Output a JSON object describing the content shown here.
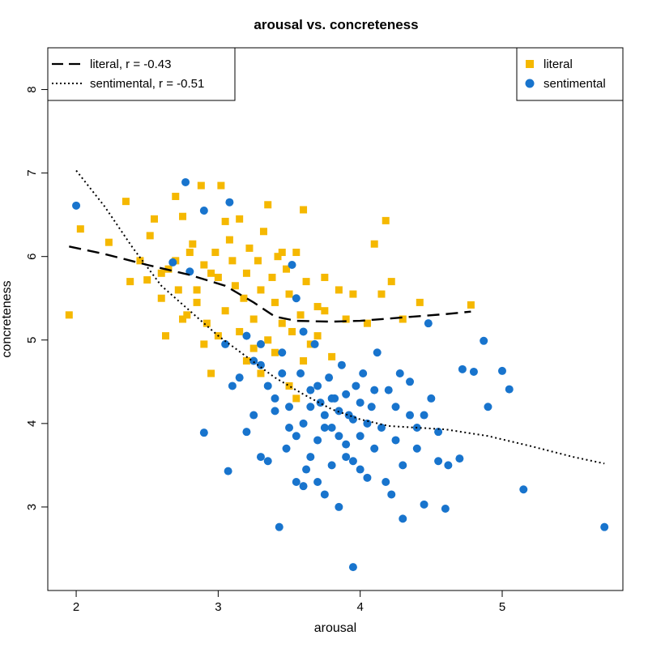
{
  "chart_data": {
    "type": "scatter",
    "title": "arousal vs. concreteness",
    "xlabel": "arousal",
    "ylabel": "concreteness",
    "xlim": [
      1.8,
      5.85
    ],
    "ylim": [
      2.0,
      8.5
    ],
    "xticks": [
      2,
      3,
      4,
      5
    ],
    "yticks": [
      3,
      4,
      5,
      6,
      7,
      8
    ],
    "grid": false,
    "series": [
      {
        "name": "literal",
        "marker": "square",
        "color": "#F5B800",
        "points": [
          [
            1.95,
            5.3
          ],
          [
            2.03,
            6.33
          ],
          [
            2.23,
            6.17
          ],
          [
            2.35,
            6.66
          ],
          [
            2.38,
            5.7
          ],
          [
            2.45,
            5.95
          ],
          [
            2.5,
            5.72
          ],
          [
            2.52,
            6.25
          ],
          [
            2.55,
            6.45
          ],
          [
            2.6,
            5.5
          ],
          [
            2.63,
            5.05
          ],
          [
            2.65,
            5.85
          ],
          [
            2.7,
            6.72
          ],
          [
            2.72,
            5.6
          ],
          [
            2.75,
            6.48
          ],
          [
            2.78,
            5.3
          ],
          [
            2.8,
            6.05
          ],
          [
            2.82,
            6.15
          ],
          [
            2.85,
            5.45
          ],
          [
            2.88,
            6.85
          ],
          [
            2.9,
            5.9
          ],
          [
            2.92,
            5.2
          ],
          [
            2.95,
            4.6
          ],
          [
            2.98,
            6.05
          ],
          [
            3.0,
            5.75
          ],
          [
            3.02,
            6.85
          ],
          [
            3.05,
            5.35
          ],
          [
            3.08,
            6.2
          ],
          [
            3.1,
            5.95
          ],
          [
            3.12,
            5.65
          ],
          [
            3.15,
            6.45
          ],
          [
            3.18,
            5.5
          ],
          [
            3.2,
            5.8
          ],
          [
            3.22,
            6.1
          ],
          [
            3.25,
            5.25
          ],
          [
            3.28,
            5.95
          ],
          [
            3.3,
            5.6
          ],
          [
            3.32,
            6.3
          ],
          [
            3.35,
            5.0
          ],
          [
            3.38,
            5.75
          ],
          [
            3.4,
            5.45
          ],
          [
            3.42,
            6.0
          ],
          [
            3.45,
            5.2
          ],
          [
            3.48,
            5.85
          ],
          [
            3.5,
            5.55
          ],
          [
            3.52,
            5.1
          ],
          [
            3.55,
            6.05
          ],
          [
            3.58,
            5.3
          ],
          [
            3.6,
            6.56
          ],
          [
            3.62,
            5.7
          ],
          [
            3.65,
            4.95
          ],
          [
            3.7,
            5.4
          ],
          [
            3.75,
            5.75
          ],
          [
            3.8,
            4.8
          ],
          [
            3.85,
            5.6
          ],
          [
            3.9,
            5.25
          ],
          [
            3.95,
            5.55
          ],
          [
            4.05,
            5.2
          ],
          [
            4.1,
            6.15
          ],
          [
            4.15,
            5.55
          ],
          [
            4.18,
            6.43
          ],
          [
            4.22,
            5.7
          ],
          [
            4.3,
            5.25
          ],
          [
            4.42,
            5.45
          ],
          [
            4.78,
            5.42
          ],
          [
            2.9,
            4.95
          ],
          [
            3.0,
            5.05
          ],
          [
            3.2,
            4.75
          ],
          [
            3.3,
            4.6
          ],
          [
            3.4,
            4.85
          ],
          [
            3.5,
            4.45
          ],
          [
            2.75,
            5.25
          ],
          [
            2.85,
            5.6
          ],
          [
            3.05,
            6.42
          ],
          [
            3.35,
            6.62
          ],
          [
            3.45,
            6.05
          ],
          [
            2.6,
            5.8
          ],
          [
            2.95,
            5.8
          ],
          [
            3.15,
            5.1
          ],
          [
            3.25,
            4.9
          ],
          [
            3.55,
            4.3
          ],
          [
            3.6,
            4.75
          ],
          [
            3.7,
            5.05
          ],
          [
            3.75,
            5.35
          ],
          [
            2.7,
            5.95
          ]
        ]
      },
      {
        "name": "sentimental",
        "marker": "circle",
        "color": "#1874CD",
        "points": [
          [
            2.0,
            6.61
          ],
          [
            2.77,
            6.89
          ],
          [
            2.9,
            6.55
          ],
          [
            3.08,
            6.65
          ],
          [
            2.68,
            5.93
          ],
          [
            2.8,
            5.82
          ],
          [
            2.9,
            3.89
          ],
          [
            3.07,
            3.43
          ],
          [
            3.1,
            4.45
          ],
          [
            3.2,
            5.05
          ],
          [
            3.25,
            4.1
          ],
          [
            3.3,
            4.7
          ],
          [
            3.35,
            3.55
          ],
          [
            3.4,
            4.3
          ],
          [
            3.43,
            2.76
          ],
          [
            3.45,
            4.85
          ],
          [
            3.48,
            3.7
          ],
          [
            3.5,
            4.2
          ],
          [
            3.52,
            5.9
          ],
          [
            3.55,
            3.3
          ],
          [
            3.58,
            4.6
          ],
          [
            3.6,
            4.0
          ],
          [
            3.62,
            3.45
          ],
          [
            3.65,
            4.4
          ],
          [
            3.68,
            4.95
          ],
          [
            3.7,
            3.8
          ],
          [
            3.72,
            4.25
          ],
          [
            3.75,
            3.15
          ],
          [
            3.78,
            4.55
          ],
          [
            3.8,
            3.95
          ],
          [
            3.82,
            4.3
          ],
          [
            3.85,
            3.0
          ],
          [
            3.87,
            4.7
          ],
          [
            3.9,
            3.6
          ],
          [
            3.92,
            4.1
          ],
          [
            3.95,
            2.28
          ],
          [
            3.97,
            4.45
          ],
          [
            4.0,
            3.85
          ],
          [
            4.02,
            4.6
          ],
          [
            4.05,
            3.35
          ],
          [
            4.08,
            4.2
          ],
          [
            4.1,
            3.7
          ],
          [
            4.12,
            4.85
          ],
          [
            4.15,
            3.95
          ],
          [
            4.18,
            3.3
          ],
          [
            4.2,
            4.4
          ],
          [
            4.22,
            3.15
          ],
          [
            4.25,
            3.8
          ],
          [
            4.28,
            4.6
          ],
          [
            4.3,
            3.5
          ],
          [
            4.35,
            4.1
          ],
          [
            4.4,
            3.7
          ],
          [
            4.45,
            3.03
          ],
          [
            4.5,
            4.3
          ],
          [
            4.55,
            3.9
          ],
          [
            4.6,
            2.98
          ],
          [
            4.62,
            3.5
          ],
          [
            4.7,
            3.58
          ],
          [
            4.72,
            4.65
          ],
          [
            4.8,
            4.62
          ],
          [
            4.9,
            4.2
          ],
          [
            4.87,
            4.99
          ],
          [
            5.0,
            4.63
          ],
          [
            5.05,
            4.41
          ],
          [
            5.15,
            3.21
          ],
          [
            5.72,
            2.76
          ],
          [
            4.48,
            5.2
          ],
          [
            4.3,
            2.86
          ],
          [
            3.55,
            5.5
          ],
          [
            3.6,
            5.1
          ],
          [
            3.65,
            4.2
          ],
          [
            3.7,
            4.45
          ],
          [
            3.75,
            4.1
          ],
          [
            3.8,
            4.3
          ],
          [
            3.85,
            4.15
          ],
          [
            3.9,
            4.35
          ],
          [
            3.95,
            4.05
          ],
          [
            4.0,
            4.25
          ],
          [
            4.05,
            4.0
          ],
          [
            4.1,
            4.4
          ],
          [
            3.3,
            4.95
          ],
          [
            3.35,
            4.45
          ],
          [
            3.4,
            4.15
          ],
          [
            3.45,
            4.6
          ],
          [
            3.5,
            3.95
          ],
          [
            3.25,
            4.75
          ],
          [
            3.15,
            4.55
          ],
          [
            3.05,
            4.95
          ],
          [
            3.2,
            3.9
          ],
          [
            3.3,
            3.6
          ],
          [
            3.6,
            3.25
          ],
          [
            3.7,
            3.3
          ],
          [
            3.8,
            3.5
          ],
          [
            3.9,
            3.75
          ],
          [
            4.0,
            3.45
          ],
          [
            4.25,
            4.2
          ],
          [
            4.35,
            4.5
          ],
          [
            4.4,
            3.95
          ],
          [
            4.55,
            3.55
          ],
          [
            4.45,
            4.1
          ],
          [
            3.55,
            3.85
          ],
          [
            3.65,
            3.6
          ],
          [
            3.75,
            3.95
          ],
          [
            3.85,
            3.85
          ],
          [
            3.95,
            3.55
          ]
        ]
      }
    ],
    "trend_lines": [
      {
        "name": "literal",
        "label": "literal, r = -0.43",
        "style": "long-dash",
        "points": [
          [
            1.95,
            6.12
          ],
          [
            2.2,
            6.03
          ],
          [
            2.5,
            5.9
          ],
          [
            2.8,
            5.78
          ],
          [
            3.05,
            5.65
          ],
          [
            3.25,
            5.45
          ],
          [
            3.4,
            5.28
          ],
          [
            3.55,
            5.23
          ],
          [
            3.8,
            5.22
          ],
          [
            4.0,
            5.23
          ],
          [
            4.3,
            5.27
          ],
          [
            4.6,
            5.31
          ],
          [
            4.78,
            5.34
          ]
        ]
      },
      {
        "name": "sentimental",
        "label": "sentimental, r = -0.51",
        "style": "dotted",
        "points": [
          [
            2.0,
            7.03
          ],
          [
            2.2,
            6.6
          ],
          [
            2.4,
            6.1
          ],
          [
            2.6,
            5.65
          ],
          [
            2.8,
            5.35
          ],
          [
            3.0,
            5.05
          ],
          [
            3.2,
            4.8
          ],
          [
            3.4,
            4.55
          ],
          [
            3.6,
            4.35
          ],
          [
            3.8,
            4.17
          ],
          [
            4.0,
            4.05
          ],
          [
            4.2,
            3.97
          ],
          [
            4.4,
            3.95
          ],
          [
            4.6,
            3.93
          ],
          [
            4.9,
            3.85
          ],
          [
            5.2,
            3.73
          ],
          [
            5.5,
            3.6
          ],
          [
            5.72,
            3.52
          ]
        ]
      }
    ],
    "legend_left": {
      "placement": "top-left",
      "items": [
        {
          "label": "literal, r = -0.43",
          "style": "long-dash"
        },
        {
          "label": "sentimental, r = -0.51",
          "style": "dotted"
        }
      ]
    },
    "legend_right": {
      "placement": "top-right",
      "items": [
        {
          "label": "literal",
          "marker": "square",
          "color": "#F5B800"
        },
        {
          "label": "sentimental",
          "marker": "circle",
          "color": "#1874CD"
        }
      ]
    }
  }
}
